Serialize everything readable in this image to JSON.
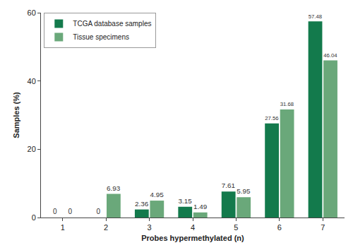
{
  "chart_data": {
    "type": "bar",
    "x_label": "Probes hypermethylated (n)",
    "y_label": "Samples (%)",
    "categories": [
      "1",
      "2",
      "3",
      "4",
      "5",
      "6",
      "7"
    ],
    "series": [
      {
        "name": "TCGA database samples",
        "color": "#137a4c",
        "values": [
          0,
          0,
          2.36,
          3.15,
          7.61,
          27.56,
          57.48
        ]
      },
      {
        "name": "Tissue specimens",
        "color": "#6aa87a",
        "values": [
          0,
          6.93,
          4.95,
          1.49,
          5.95,
          31.68,
          46.04
        ]
      }
    ],
    "ylim": [
      0,
      60
    ],
    "yticks": [
      0,
      20,
      40,
      60
    ],
    "grid": false,
    "legend": "top left",
    "data_labels": true
  }
}
